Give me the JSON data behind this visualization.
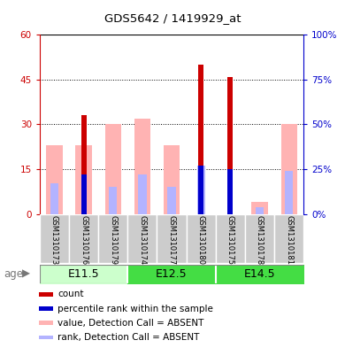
{
  "title": "GDS5642 / 1419929_at",
  "samples": [
    "GSM1310173",
    "GSM1310176",
    "GSM1310179",
    "GSM1310174",
    "GSM1310177",
    "GSM1310180",
    "GSM1310175",
    "GSM1310178",
    "GSM1310181"
  ],
  "count_values": [
    0,
    33,
    0,
    0,
    0,
    50,
    46,
    0,
    0
  ],
  "percentile_values": [
    0,
    22,
    0,
    0,
    0,
    27,
    25,
    0,
    0
  ],
  "absent_value_bars": [
    23,
    23,
    30,
    32,
    23,
    0,
    0,
    4,
    30
  ],
  "absent_rank_bars": [
    17,
    0,
    15,
    22,
    15,
    27,
    0,
    4,
    24
  ],
  "ylim_left": [
    0,
    60
  ],
  "ylim_right": [
    0,
    100
  ],
  "yticks_left": [
    0,
    15,
    30,
    45,
    60
  ],
  "yticks_left_labels": [
    "0",
    "15",
    "30",
    "45",
    "60"
  ],
  "yticks_right": [
    0,
    25,
    50,
    75,
    100
  ],
  "yticks_right_labels": [
    "0%",
    "25%",
    "50%",
    "75%",
    "100%"
  ],
  "color_count": "#cc0000",
  "color_percentile": "#0000cc",
  "color_absent_value": "#ffb3b3",
  "color_absent_rank": "#b3b3ff",
  "groups": [
    {
      "label": "E11.5",
      "start": 0,
      "end": 2,
      "color": "#ccffcc"
    },
    {
      "label": "E12.5",
      "start": 3,
      "end": 5,
      "color": "#44dd44"
    },
    {
      "label": "E14.5",
      "start": 6,
      "end": 8,
      "color": "#44dd44"
    }
  ],
  "legend_items": [
    {
      "color": "#cc0000",
      "label": "count"
    },
    {
      "color": "#0000cc",
      "label": "percentile rank within the sample"
    },
    {
      "color": "#ffb3b3",
      "label": "value, Detection Call = ABSENT"
    },
    {
      "color": "#b3b3ff",
      "label": "rank, Detection Call = ABSENT"
    }
  ]
}
